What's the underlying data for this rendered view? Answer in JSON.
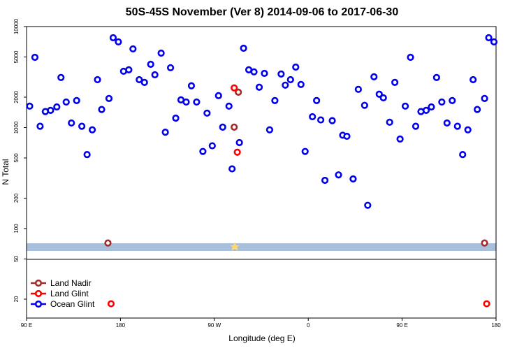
{
  "chart_data": {
    "type": "scatter",
    "title": "50S-45S November (Ver 8)   2014-09-06 to 2017-06-30",
    "xlabel": "Longitude (deg E)",
    "ylabel": "N Total",
    "log_y": true,
    "legend": "bottom-left",
    "xlim": [
      90,
      540
    ],
    "xticks": [
      {
        "value": 90,
        "label": "90 E"
      },
      180,
      {
        "value": 270,
        "label": "90 W"
      },
      {
        "value": 360,
        "label": "0"
      },
      {
        "value": 450,
        "label": "90 E"
      },
      {
        "value": 540,
        "label": "180"
      }
    ],
    "ylim": [
      13,
      10000
    ],
    "yticks": [
      20,
      50,
      100,
      200,
      500,
      1000,
      2000,
      5000,
      10000
    ],
    "series": [
      {
        "name": "Land Nadir",
        "color": "#a52a2a",
        "x": [
          168,
          289,
          293,
          529
        ],
        "values": [
          72,
          1010,
          2240,
          72
        ]
      },
      {
        "name": "Land Glint",
        "color": "#ff0000",
        "x": [
          289,
          292,
          171,
          531
        ],
        "values": [
          2470,
          570,
          18,
          18
        ]
      },
      {
        "name": "Ocean Glint",
        "color": "#0000ee",
        "x": [
          93,
          98,
          103,
          108,
          113,
          119,
          123,
          128,
          133,
          138,
          143,
          148,
          153,
          158,
          162,
          169,
          173,
          178,
          183,
          188,
          192,
          198,
          203,
          209,
          213,
          219,
          223,
          228,
          233,
          238,
          243,
          248,
          253,
          259,
          263,
          268,
          274,
          278,
          284,
          287,
          294,
          298,
          303,
          308,
          313,
          318,
          323,
          328,
          334,
          338,
          343,
          348,
          353,
          357,
          364,
          368,
          372,
          376,
          383,
          389,
          393,
          397,
          403,
          408,
          414,
          417,
          423,
          428,
          432,
          438,
          443,
          448,
          453,
          458,
          463,
          468,
          473,
          478,
          483,
          488,
          493,
          498,
          503,
          508,
          513,
          518,
          522,
          529,
          533,
          538
        ],
        "values": [
          1630,
          4960,
          1030,
          1440,
          1480,
          1600,
          3130,
          1790,
          1110,
          1850,
          1030,
          540,
          950,
          2980,
          1510,
          1940,
          7750,
          7050,
          3610,
          3730,
          6010,
          2980,
          2800,
          4230,
          3330,
          5460,
          900,
          3910,
          1240,
          1880,
          1790,
          2590,
          1790,
          580,
          1390,
          660,
          2070,
          1010,
          1630,
          390,
          710,
          6100,
          3730,
          3560,
          2510,
          3440,
          950,
          1850,
          3390,
          2630,
          2980,
          3970,
          2670,
          580,
          1280,
          1850,
          1190,
          300,
          1170,
          340,
          840,
          820,
          310,
          2390,
          1660,
          170,
          3180,
          2140,
          1970,
          1130,
          2800,
          770,
          1630,
          4960,
          1030,
          1440,
          1480,
          1600,
          3130,
          1790,
          1110,
          1850,
          1030,
          540,
          950,
          2980,
          1510,
          1940,
          7750,
          7050
        ]
      }
    ]
  }
}
